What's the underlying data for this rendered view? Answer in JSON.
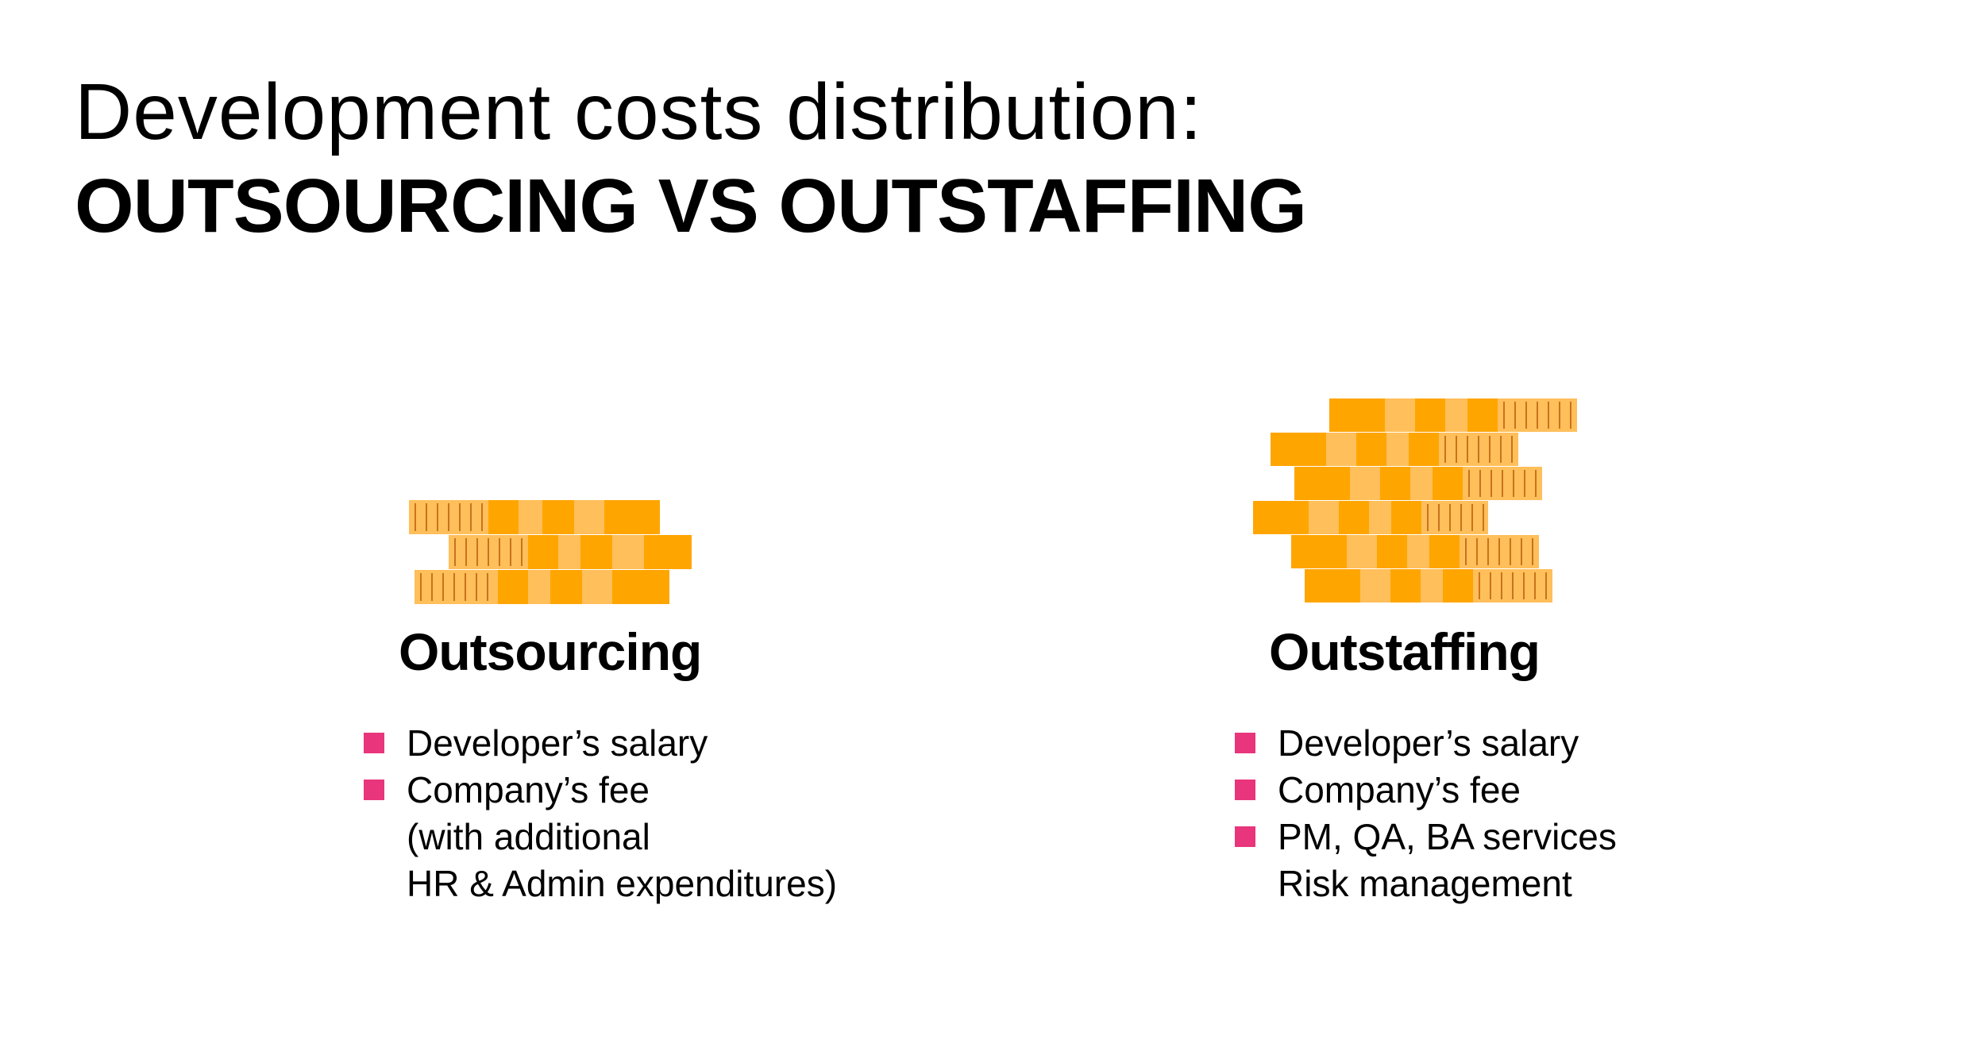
{
  "title": {
    "line1": "Development costs distribution:",
    "line2": "OUTSOURCING VS OUTSTAFFING"
  },
  "colors": {
    "coin_dark": "#FFA500",
    "coin_light": "#FFBF5A",
    "coin_ridge": "#C8731E",
    "bullet": "#E8357C",
    "text": "#000000"
  },
  "columns": {
    "outsourcing": {
      "heading": "Outsourcing",
      "coin_rows": 3,
      "items": [
        {
          "text": "Developer’s salary",
          "bullet": true
        },
        {
          "text": "Company’s fee",
          "bullet": true
        },
        {
          "text": "(with additional",
          "bullet": false
        },
        {
          "text": "HR & Admin expenditures)",
          "bullet": false
        }
      ]
    },
    "outstaffing": {
      "heading": "Outstaffing",
      "coin_rows": 6,
      "items": [
        {
          "text": "Developer’s salary",
          "bullet": true
        },
        {
          "text": "Company’s fee",
          "bullet": true
        },
        {
          "text": "PM, QA, BA services",
          "bullet": true
        },
        {
          "text": "Risk management",
          "bullet": false
        }
      ]
    }
  }
}
